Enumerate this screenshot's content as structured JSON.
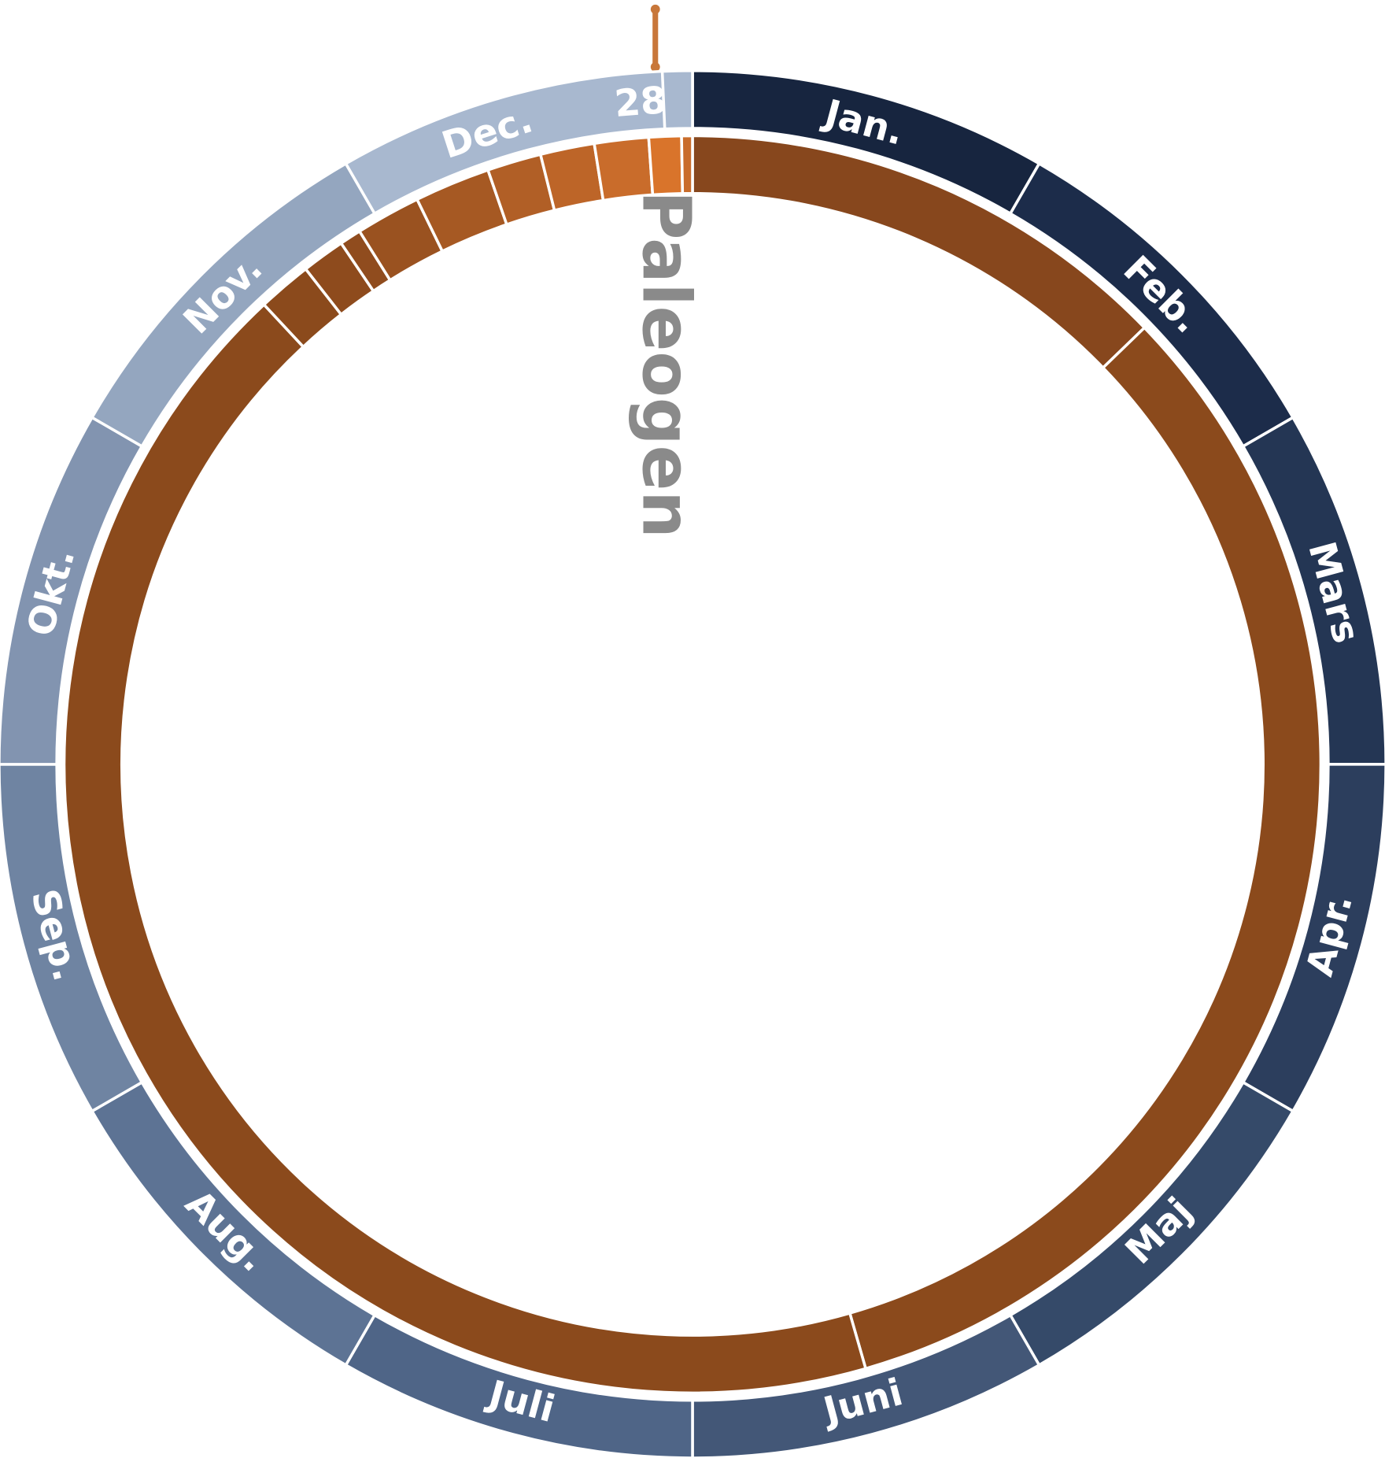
{
  "months": [
    "Jan.",
    "Feb.",
    "Mars",
    "Apr.",
    "Maj",
    "Juni",
    "Juli",
    "Aug.",
    "Sep.",
    "Okt.",
    "Nov.",
    "Dec."
  ],
  "day_label": "28",
  "period_label": "Paleogen"
}
